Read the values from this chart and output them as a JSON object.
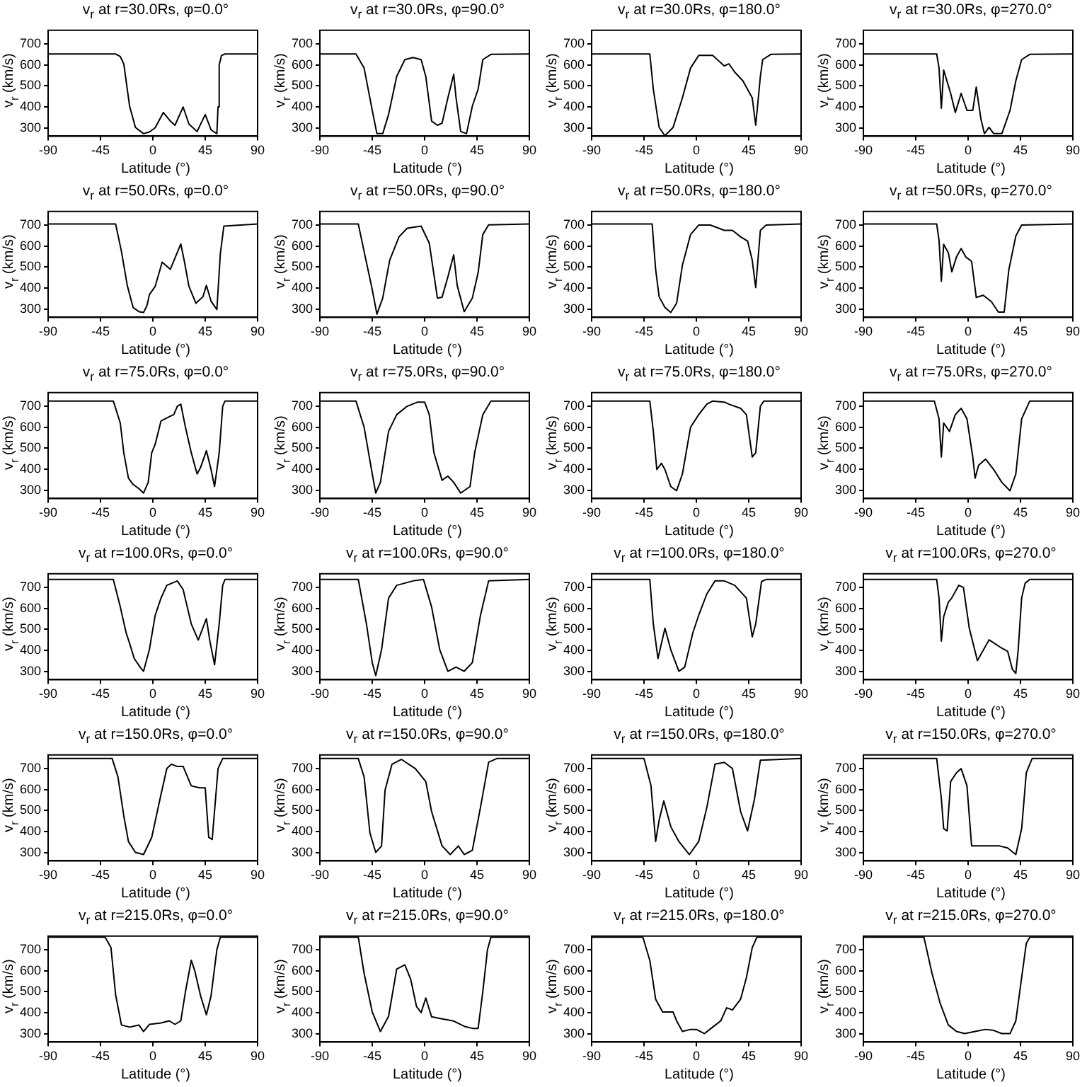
{
  "chart_data": [
    {
      "type": "line",
      "title": "v$_{r}$ at r=30.0Rs, φ=0.0°",
      "xlabel": "Latitude (°)",
      "ylabel": "v$_{r}$ (km/s)",
      "xlim": [
        -90,
        90
      ],
      "xticks": [
        -90,
        -45,
        0,
        45,
        90
      ],
      "ylim": [
        260,
        765
      ],
      "yticks": [
        300,
        400,
        500,
        600,
        700
      ],
      "color": "#000000",
      "x": [
        -90,
        -32,
        -28,
        -25,
        -20,
        -15,
        -8,
        -3,
        2,
        9,
        15,
        19,
        26,
        31,
        38,
        45,
        50,
        55,
        56,
        57,
        59,
        62,
        90
      ],
      "values": [
        652,
        652,
        640,
        605,
        403,
        302,
        272,
        280,
        300,
        373,
        332,
        312,
        399,
        318,
        282,
        363,
        290,
        272,
        400,
        600,
        645,
        652,
        652
      ]
    },
    {
      "type": "line",
      "title": "v$_{r}$ at r=30.0Rs, φ=90.0°",
      "xlabel": "Latitude (°)",
      "ylabel": "v$_{r}$ (km/s)",
      "xlim": [
        -90,
        90
      ],
      "xticks": [
        -90,
        -45,
        0,
        45,
        90
      ],
      "ylim": [
        260,
        765
      ],
      "yticks": [
        300,
        400,
        500,
        600,
        700
      ],
      "color": "#000000",
      "x": [
        -90,
        -59,
        -52,
        -45,
        -41,
        -36,
        -31,
        -24,
        -17,
        -10,
        -3,
        1,
        6,
        11,
        15,
        20,
        25,
        27,
        31,
        36,
        41,
        46,
        50,
        57,
        90
      ],
      "values": [
        652,
        652,
        585,
        383,
        272,
        272,
        363,
        545,
        625,
        635,
        625,
        545,
        332,
        312,
        322,
        443,
        555,
        443,
        282,
        272,
        403,
        484,
        625,
        650,
        652
      ]
    },
    {
      "type": "line",
      "title": "v$_{r}$ at r=30.0Rs, φ=180.0°",
      "xlabel": "Latitude (°)",
      "ylabel": "v$_{r}$ (km/s)",
      "xlim": [
        -90,
        90
      ],
      "xticks": [
        -90,
        -45,
        0,
        45,
        90
      ],
      "ylim": [
        260,
        765
      ],
      "yticks": [
        300,
        400,
        500,
        600,
        700
      ],
      "color": "#000000",
      "x": [
        -90,
        -40,
        -37,
        -32,
        -27,
        -20,
        -12,
        -5,
        2,
        14,
        24,
        28,
        33,
        40,
        48,
        51,
        55,
        57,
        64,
        90
      ],
      "values": [
        652,
        652,
        484,
        302,
        262,
        302,
        443,
        585,
        645,
        645,
        595,
        605,
        565,
        524,
        443,
        312,
        545,
        625,
        650,
        652
      ]
    },
    {
      "type": "line",
      "title": "v$_{r}$ at r=30.0Rs, φ=270.0°",
      "xlabel": "Latitude (°)",
      "ylabel": "v$_{r}$ (km/s)",
      "xlim": [
        -90,
        90
      ],
      "xticks": [
        -90,
        -45,
        0,
        45,
        90
      ],
      "ylim": [
        260,
        765
      ],
      "yticks": [
        300,
        400,
        500,
        600,
        700
      ],
      "color": "#000000",
      "x": [
        -90,
        -27,
        -25,
        -23,
        -21,
        -15,
        -11,
        -6,
        -1,
        4,
        7,
        11,
        14,
        18,
        22,
        29,
        36,
        41,
        46,
        53,
        90
      ],
      "values": [
        652,
        652,
        585,
        393,
        575,
        464,
        373,
        464,
        383,
        383,
        494,
        342,
        272,
        302,
        272,
        272,
        383,
        524,
        625,
        650,
        652
      ]
    },
    {
      "type": "line",
      "title": "v$_{r}$ at r=50.0Rs, φ=0.0°",
      "xlabel": "Latitude (°)",
      "ylabel": "v$_{r}$ (km/s)",
      "xlim": [
        -90,
        90
      ],
      "xticks": [
        -90,
        -45,
        0,
        45,
        90
      ],
      "ylim": [
        260,
        765
      ],
      "yticks": [
        300,
        400,
        500,
        600,
        700
      ],
      "color": "#000000",
      "x": [
        -90,
        -32,
        -27,
        -22,
        -17,
        -12,
        -8,
        -5,
        -3,
        2,
        8,
        15,
        24,
        27,
        31,
        37,
        43,
        46,
        50,
        55,
        58,
        61,
        90
      ],
      "values": [
        705,
        705,
        574,
        412,
        307,
        287,
        283,
        317,
        368,
        408,
        523,
        489,
        610,
        529,
        408,
        327,
        358,
        412,
        337,
        297,
        564,
        695,
        705
      ]
    },
    {
      "type": "line",
      "title": "v$_{r}$ at r=50.0Rs, φ=90.0°",
      "xlabel": "Latitude (°)",
      "ylabel": "v$_{r}$ (km/s)",
      "xlim": [
        -90,
        90
      ],
      "xticks": [
        -90,
        -45,
        0,
        45,
        90
      ],
      "ylim": [
        260,
        765
      ],
      "yticks": [
        300,
        400,
        500,
        600,
        700
      ],
      "color": "#000000",
      "x": [
        -90,
        -57,
        -52,
        -45,
        -41,
        -36,
        -30,
        -22,
        -15,
        -3,
        4,
        11,
        15,
        20,
        25,
        28,
        34,
        41,
        46,
        50,
        55,
        90
      ],
      "values": [
        705,
        705,
        574,
        392,
        275,
        352,
        533,
        644,
        685,
        695,
        614,
        352,
        356,
        453,
        558,
        412,
        287,
        352,
        473,
        655,
        701,
        705
      ]
    },
    {
      "type": "line",
      "title": "v$_{r}$ at r=50.0Rs, φ=180.0°",
      "xlabel": "Latitude (°)",
      "ylabel": "v$_{r}$ (km/s)",
      "xlim": [
        -90,
        90
      ],
      "xticks": [
        -90,
        -45,
        0,
        45,
        90
      ],
      "ylim": [
        260,
        765
      ],
      "yticks": [
        300,
        400,
        500,
        600,
        700
      ],
      "color": "#000000",
      "x": [
        -90,
        -38,
        -35,
        -32,
        -27,
        -22,
        -17,
        -12,
        -5,
        2,
        12,
        24,
        31,
        38,
        44,
        48,
        51,
        55,
        60,
        90
      ],
      "values": [
        705,
        705,
        489,
        358,
        307,
        283,
        327,
        509,
        655,
        700,
        700,
        675,
        675,
        644,
        624,
        533,
        402,
        675,
        700,
        705
      ]
    },
    {
      "type": "line",
      "title": "v$_{r}$ at r=50.0Rs, φ=270.0°",
      "xlabel": "Latitude (°)",
      "ylabel": "v$_{r}$ (km/s)",
      "xlim": [
        -90,
        90
      ],
      "xticks": [
        -90,
        -45,
        0,
        45,
        90
      ],
      "ylim": [
        260,
        765
      ],
      "yticks": [
        300,
        400,
        500,
        600,
        700
      ],
      "color": "#000000",
      "x": [
        -90,
        -27,
        -25,
        -23,
        -21,
        -17,
        -14,
        -10,
        -6,
        -2,
        3,
        7,
        13,
        20,
        26,
        31,
        35,
        41,
        46,
        90
      ],
      "values": [
        705,
        705,
        628,
        432,
        608,
        568,
        477,
        548,
        588,
        548,
        527,
        355,
        365,
        335,
        285,
        285,
        487,
        648,
        700,
        705
      ]
    },
    {
      "type": "line",
      "title": "v$_{r}$ at r=75.0Rs, φ=0.0°",
      "xlabel": "Latitude (°)",
      "ylabel": "v$_{r}$ (km/s)",
      "xlim": [
        -90,
        90
      ],
      "xticks": [
        -90,
        -45,
        0,
        45,
        90
      ],
      "ylim": [
        260,
        765
      ],
      "yticks": [
        300,
        400,
        500,
        600,
        700
      ],
      "color": "#000000",
      "x": [
        -90,
        -34,
        -28,
        -25,
        -21,
        -17,
        -12,
        -8,
        -4,
        -1,
        2,
        7,
        14,
        18,
        21,
        24,
        28,
        33,
        38,
        41,
        46,
        50,
        53,
        57,
        60,
        62,
        90
      ],
      "values": [
        725,
        725,
        620,
        478,
        357,
        327,
        307,
        286,
        337,
        478,
        519,
        630,
        650,
        660,
        700,
        710,
        600,
        478,
        377,
        408,
        488,
        398,
        317,
        478,
        700,
        725,
        725
      ]
    },
    {
      "type": "line",
      "title": "v$_{r}$ at r=75.0Rs, φ=90.0°",
      "xlabel": "Latitude (°)",
      "ylabel": "v$_{r}$ (km/s)",
      "xlim": [
        -90,
        90
      ],
      "xticks": [
        -90,
        -45,
        0,
        45,
        90
      ],
      "ylim": [
        260,
        765
      ],
      "yticks": [
        300,
        400,
        500,
        600,
        700
      ],
      "color": "#000000",
      "x": [
        -90,
        -59,
        -52,
        -45,
        -42,
        -38,
        -31,
        -24,
        -15,
        -6,
        0,
        4,
        8,
        15,
        20,
        25,
        31,
        39,
        43,
        50,
        57,
        90
      ],
      "values": [
        725,
        725,
        600,
        377,
        286,
        337,
        580,
        660,
        700,
        720,
        720,
        660,
        478,
        347,
        367,
        337,
        286,
        317,
        478,
        660,
        725,
        725
      ]
    },
    {
      "type": "line",
      "title": "v$_{r}$ at r=75.0Rs, φ=180.0°",
      "xlabel": "Latitude (°)",
      "ylabel": "v$_{r}$ (km/s)",
      "xlim": [
        -90,
        90
      ],
      "xticks": [
        -90,
        -45,
        0,
        45,
        90
      ],
      "ylim": [
        260,
        765
      ],
      "yticks": [
        300,
        400,
        500,
        600,
        700
      ],
      "color": "#000000",
      "x": [
        -90,
        -40,
        -37,
        -34,
        -30,
        -27,
        -22,
        -17,
        -12,
        -5,
        2,
        9,
        14,
        24,
        28,
        38,
        43,
        48,
        51,
        55,
        58,
        90
      ],
      "values": [
        725,
        725,
        580,
        398,
        428,
        398,
        317,
        297,
        377,
        600,
        660,
        710,
        725,
        720,
        710,
        690,
        660,
        458,
        478,
        700,
        725,
        725
      ]
    },
    {
      "type": "line",
      "title": "v$_{r}$ at r=75.0Rs, φ=270.0°",
      "xlabel": "Latitude (°)",
      "ylabel": "v$_{r}$ (km/s)",
      "xlim": [
        -90,
        90
      ],
      "xticks": [
        -90,
        -45,
        0,
        45,
        90
      ],
      "ylim": [
        260,
        765
      ],
      "yticks": [
        300,
        400,
        500,
        600,
        700
      ],
      "color": "#000000",
      "x": [
        -90,
        -29,
        -25,
        -23,
        -21,
        -16,
        -11,
        -6,
        -1,
        4,
        6,
        9,
        15,
        22,
        29,
        36,
        41,
        46,
        53,
        90
      ],
      "values": [
        725,
        725,
        640,
        458,
        620,
        580,
        660,
        690,
        640,
        458,
        357,
        418,
        448,
        398,
        337,
        297,
        377,
        640,
        725,
        725
      ]
    },
    {
      "type": "line",
      "title": "v$_{r}$ at r=100.0Rs, φ=0.0°",
      "xlabel": "Latitude (°)",
      "ylabel": "v$_{r}$ (km/s)",
      "xlim": [
        -90,
        90
      ],
      "xticks": [
        -90,
        -45,
        0,
        45,
        90
      ],
      "ylim": [
        260,
        765
      ],
      "yticks": [
        300,
        400,
        500,
        600,
        700
      ],
      "color": "#000000",
      "x": [
        -90,
        -34,
        -28,
        -23,
        -20,
        -16,
        -11,
        -8,
        -3,
        2,
        7,
        12,
        21,
        26,
        33,
        39,
        46,
        49,
        53,
        57,
        60,
        62,
        90
      ],
      "values": [
        738,
        738,
        607,
        484,
        433,
        361,
        320,
        300,
        403,
        567,
        649,
        710,
        731,
        690,
        526,
        449,
        551,
        444,
        331,
        526,
        710,
        738,
        738
      ]
    },
    {
      "type": "line",
      "title": "v$_{r}$ at r=100.0Rs, φ=90.0°",
      "xlabel": "Latitude (°)",
      "ylabel": "v$_{r}$ (km/s)",
      "xlim": [
        -90,
        90
      ],
      "xticks": [
        -90,
        -45,
        0,
        45,
        90
      ],
      "ylim": [
        260,
        765
      ],
      "yticks": [
        300,
        400,
        500,
        600,
        700
      ],
      "color": "#000000",
      "x": [
        -90,
        -57,
        -50,
        -45,
        -42,
        -37,
        -31,
        -24,
        -10,
        -1,
        6,
        13,
        20,
        27,
        34,
        41,
        48,
        55,
        90
      ],
      "values": [
        738,
        738,
        526,
        341,
        279,
        403,
        649,
        710,
        731,
        738,
        607,
        403,
        300,
        320,
        300,
        341,
        567,
        731,
        738
      ]
    },
    {
      "type": "line",
      "title": "v$_{r}$ at r=100.0Rs, φ=180.0°",
      "xlabel": "Latitude (°)",
      "ylabel": "v$_{r}$ (km/s)",
      "xlim": [
        -90,
        90
      ],
      "xticks": [
        -90,
        -45,
        0,
        45,
        90
      ],
      "ylim": [
        260,
        765
      ],
      "yticks": [
        300,
        400,
        500,
        600,
        700
      ],
      "color": "#000000",
      "x": [
        -90,
        -40,
        -37,
        -33,
        -27,
        -22,
        -15,
        -10,
        -3,
        2,
        9,
        16,
        24,
        33,
        43,
        48,
        51,
        56,
        60,
        90
      ],
      "values": [
        738,
        738,
        526,
        361,
        505,
        403,
        300,
        320,
        484,
        567,
        669,
        731,
        731,
        710,
        649,
        464,
        526,
        728,
        738,
        738
      ]
    },
    {
      "type": "line",
      "title": "v$_{r}$ at r=100.0Rs, φ=270.0°",
      "xlabel": "Latitude (°)",
      "ylabel": "v$_{r}$ (km/s)",
      "xlim": [
        -90,
        90
      ],
      "xticks": [
        -90,
        -45,
        0,
        45,
        90
      ],
      "ylim": [
        260,
        765
      ],
      "yticks": [
        300,
        400,
        500,
        600,
        700
      ],
      "color": "#000000",
      "x": [
        -90,
        -27,
        -25,
        -23,
        -21,
        -17,
        -14,
        -8,
        -4,
        1,
        8,
        18,
        29,
        34,
        38,
        41,
        43,
        46,
        49,
        53,
        90
      ],
      "values": [
        738,
        738,
        650,
        444,
        560,
        630,
        650,
        710,
        700,
        505,
        351,
        450,
        410,
        395,
        310,
        290,
        400,
        650,
        720,
        738,
        738
      ]
    },
    {
      "type": "line",
      "title": "v$_{r}$ at r=150.0Rs, φ=0.0°",
      "xlabel": "Latitude (°)",
      "ylabel": "v$_{r}$ (km/s)",
      "xlim": [
        -90,
        90
      ],
      "xticks": [
        -90,
        -45,
        0,
        45,
        90
      ],
      "ylim": [
        260,
        765
      ],
      "yticks": [
        300,
        400,
        500,
        600,
        700
      ],
      "color": "#000000",
      "x": [
        -90,
        -35,
        -30,
        -25,
        -21,
        -15,
        -8,
        -1,
        7,
        12,
        16,
        21,
        26,
        33,
        40,
        45,
        48,
        51,
        56,
        60,
        90
      ],
      "values": [
        748,
        748,
        660,
        475,
        352,
        300,
        290,
        372,
        577,
        700,
        721,
        710,
        710,
        618,
        608,
        608,
        372,
        362,
        700,
        748,
        748
      ]
    },
    {
      "type": "line",
      "title": "v$_{r}$ at r=150.0Rs, φ=90.0°",
      "xlabel": "Latitude (°)",
      "ylabel": "v$_{r}$ (km/s)",
      "xlim": [
        -90,
        90
      ],
      "xticks": [
        -90,
        -45,
        0,
        45,
        90
      ],
      "ylim": [
        260,
        765
      ],
      "yticks": [
        300,
        400,
        500,
        600,
        700
      ],
      "color": "#000000",
      "x": [
        -90,
        -57,
        -52,
        -47,
        -42,
        -37,
        -34,
        -28,
        -20,
        -8,
        1,
        6,
        15,
        22,
        29,
        34,
        41,
        48,
        55,
        62,
        90
      ],
      "values": [
        748,
        748,
        660,
        393,
        300,
        331,
        597,
        721,
        744,
        700,
        638,
        495,
        331,
        290,
        331,
        290,
        310,
        515,
        730,
        748,
        748
      ]
    },
    {
      "type": "line",
      "title": "v$_{r}$ at r=150.0Rs, φ=180.0°",
      "xlabel": "Latitude (°)",
      "ylabel": "v$_{r}$ (km/s)",
      "xlim": [
        -90,
        90
      ],
      "xticks": [
        -90,
        -45,
        0,
        45,
        90
      ],
      "ylim": [
        260,
        765
      ],
      "yticks": [
        300,
        400,
        500,
        600,
        700
      ],
      "color": "#000000",
      "x": [
        -90,
        -45,
        -39,
        -35,
        -32,
        -28,
        -22,
        -15,
        -6,
        2,
        9,
        16,
        24,
        31,
        38,
        44,
        50,
        55,
        90
      ],
      "values": [
        748,
        748,
        618,
        352,
        454,
        546,
        423,
        352,
        290,
        352,
        515,
        721,
        730,
        700,
        495,
        403,
        556,
        740,
        748
      ]
    },
    {
      "type": "line",
      "title": "v$_{r}$ at r=150.0Rs, φ=270.0°",
      "xlabel": "Latitude (°)",
      "ylabel": "v$_{r}$ (km/s)",
      "xlim": [
        -90,
        90
      ],
      "xticks": [
        -90,
        -45,
        0,
        45,
        90
      ],
      "ylim": [
        260,
        765
      ],
      "yticks": [
        300,
        400,
        500,
        600,
        700
      ],
      "color": "#000000",
      "x": [
        -90,
        -27,
        -23,
        -21,
        -18,
        -15,
        -10,
        -6,
        -1,
        3,
        6,
        27,
        34,
        41,
        46,
        50,
        55,
        90
      ],
      "values": [
        748,
        748,
        556,
        413,
        403,
        638,
        680,
        700,
        618,
        331,
        331,
        331,
        321,
        290,
        413,
        680,
        748,
        748
      ]
    },
    {
      "type": "line",
      "title": "v$_{r}$ at r=215.0Rs, φ=0.0°",
      "xlabel": "Latitude (°)",
      "ylabel": "v$_{r}$ (km/s)",
      "xlim": [
        -90,
        90
      ],
      "xticks": [
        -90,
        -45,
        0,
        45,
        90
      ],
      "ylim": [
        260,
        765
      ],
      "yticks": [
        300,
        400,
        500,
        600,
        700
      ],
      "color": "#000000",
      "x": [
        -90,
        -41,
        -36,
        -32,
        -27,
        -20,
        -12,
        -8,
        -3,
        7,
        14,
        19,
        24,
        28,
        33,
        36,
        41,
        46,
        50,
        55,
        58,
        90
      ],
      "values": [
        760,
        760,
        710,
        485,
        341,
        331,
        341,
        310,
        344,
        351,
        361,
        344,
        361,
        500,
        650,
        600,
        480,
        390,
        480,
        700,
        760,
        760
      ]
    },
    {
      "type": "line",
      "title": "v$_{r}$ at r=215.0Rs, φ=90.0°",
      "xlabel": "Latitude (°)",
      "ylabel": "v$_{r}$ (km/s)",
      "xlim": [
        -90,
        90
      ],
      "xticks": [
        -90,
        -45,
        0,
        45,
        90
      ],
      "ylim": [
        260,
        765
      ],
      "yticks": [
        300,
        400,
        500,
        600,
        700
      ],
      "color": "#000000",
      "x": [
        -90,
        -57,
        -52,
        -45,
        -38,
        -31,
        -24,
        -17,
        -12,
        -7,
        -3,
        1,
        6,
        15,
        25,
        34,
        41,
        46,
        50,
        54,
        57,
        90
      ],
      "values": [
        760,
        760,
        587,
        403,
        310,
        382,
        608,
        628,
        560,
        430,
        400,
        470,
        380,
        370,
        360,
        335,
        325,
        325,
        500,
        700,
        760,
        760
      ]
    },
    {
      "type": "line",
      "title": "v$_{r}$ at r=215.0Rs, φ=180.0°",
      "xlabel": "Latitude (°)",
      "ylabel": "v$_{r}$ (km/s)",
      "xlim": [
        -90,
        90
      ],
      "xticks": [
        -90,
        -45,
        0,
        45,
        90
      ],
      "ylim": [
        260,
        765
      ],
      "yticks": [
        300,
        400,
        500,
        600,
        700
      ],
      "color": "#000000",
      "x": [
        -90,
        -46,
        -40,
        -35,
        -29,
        -20,
        -17,
        -12,
        -5,
        0,
        7,
        14,
        21,
        26,
        31,
        38,
        43,
        48,
        52,
        90
      ],
      "values": [
        760,
        760,
        649,
        464,
        403,
        403,
        361,
        310,
        320,
        320,
        300,
        331,
        361,
        423,
        413,
        464,
        567,
        710,
        760,
        760
      ]
    },
    {
      "type": "line",
      "title": "v$_{r}$ at r=215.0Rs, φ=270.0°",
      "xlabel": "Latitude (°)",
      "ylabel": "v$_{r}$ (km/s)",
      "xlim": [
        -90,
        90
      ],
      "xticks": [
        -90,
        -45,
        0,
        45,
        90
      ],
      "ylim": [
        260,
        765
      ],
      "yticks": [
        300,
        400,
        500,
        600,
        700
      ],
      "color": "#000000",
      "x": [
        -90,
        -38,
        -31,
        -24,
        -17,
        -10,
        -3,
        6,
        15,
        22,
        29,
        36,
        41,
        46,
        50,
        53,
        90
      ],
      "values": [
        760,
        760,
        587,
        444,
        341,
        310,
        300,
        310,
        320,
        315,
        300,
        300,
        361,
        567,
        730,
        760,
        760
      ]
    }
  ]
}
